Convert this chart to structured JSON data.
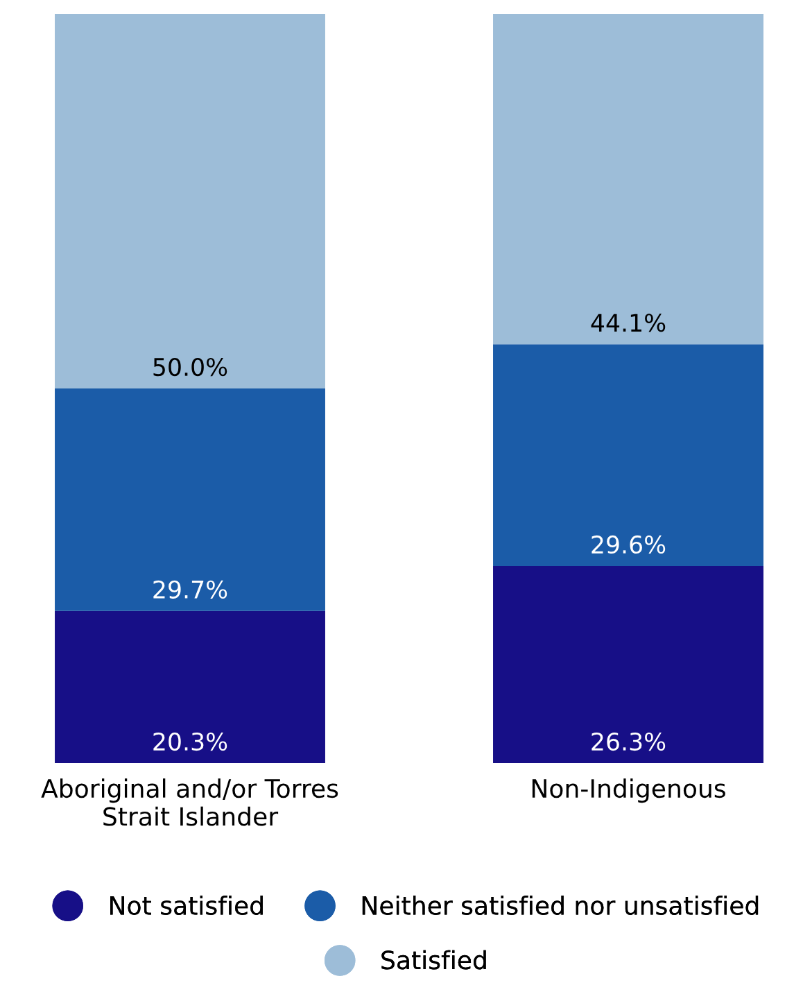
{
  "chart_data": {
    "type": "bar",
    "stacked": true,
    "legend": "bottom",
    "grid": false,
    "categories": [
      "Aboriginal and/or Torres\nStrait Islander",
      "Non-Indigenous"
    ],
    "series": [
      {
        "name": "Not satisfied",
        "color": "#170f87",
        "values": [
          20.3,
          26.3
        ],
        "value_labels": [
          "20.3%",
          "26.3%"
        ]
      },
      {
        "name": "Neither satisfied nor unsatisfied",
        "color": "#1b5ca8",
        "values": [
          29.7,
          29.6
        ],
        "value_labels": [
          "29.7%",
          "29.6%"
        ]
      },
      {
        "name": "Satisfied",
        "color": "#9dbdd8",
        "values": [
          50.0,
          44.1
        ],
        "value_labels": [
          "50.0%",
          "44.1%"
        ]
      }
    ]
  }
}
